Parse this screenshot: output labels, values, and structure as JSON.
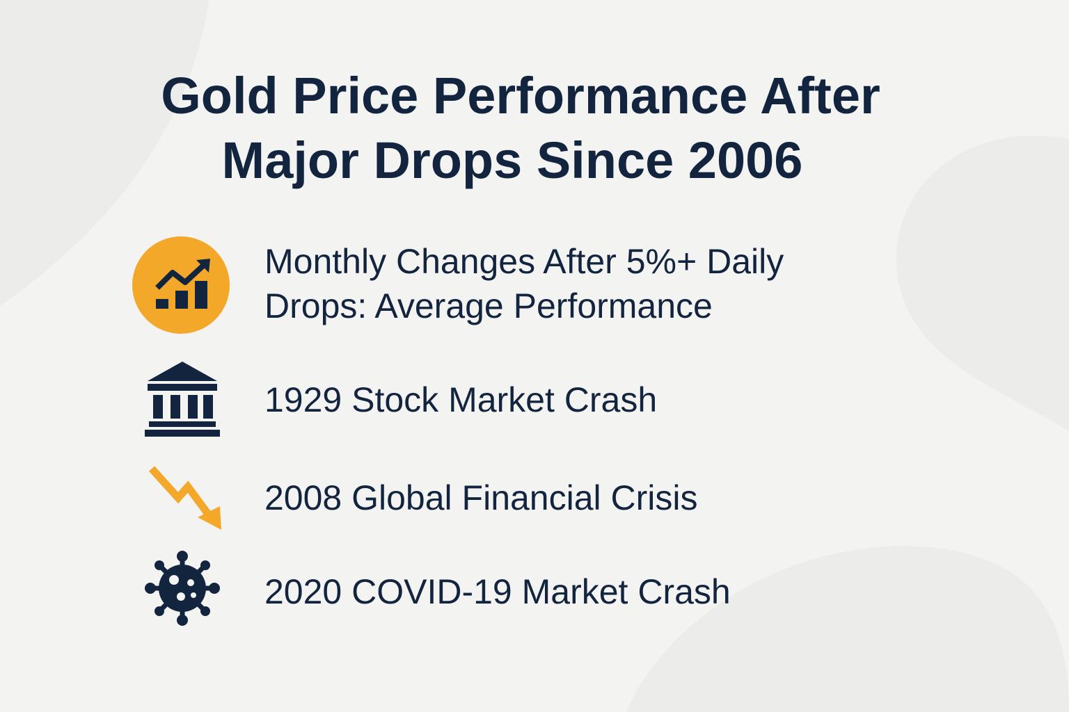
{
  "title": {
    "lines": [
      "Gold Price Performance After",
      "Major Drops Since 2006"
    ]
  },
  "items": [
    {
      "lines": [
        "Monthly Changes After 5%+ Daily",
        "Drops: Average Performance"
      ]
    },
    {
      "lines": [
        "1929 Stock Market Crash"
      ]
    },
    {
      "lines": [
        "2008 Global Financial Crisis"
      ]
    },
    {
      "lines": [
        "2020 COVID-19 Market Crash"
      ]
    }
  ]
}
